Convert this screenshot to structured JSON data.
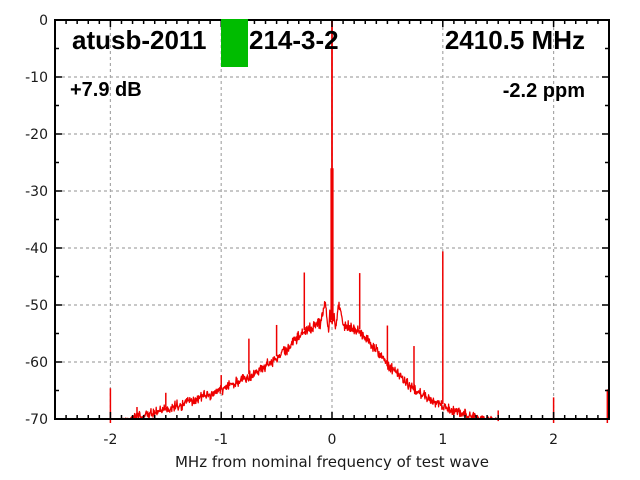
{
  "header": {
    "title_left": "atusb-2011",
    "title_right_part": "214-3-2",
    "frequency": "2410.5 MHz",
    "gain": "+7.9 dB",
    "ppm": "-2.2 ppm"
  },
  "colors": {
    "trace": "#ee0000",
    "marker_green": "#00bc00",
    "grid": "#a8a8a8",
    "axis": "#000000",
    "tick_text": "#1a1a1a"
  },
  "noise_seed": 1337,
  "chart_data": {
    "type": "line",
    "xlabel": "MHz from nominal frequency of test wave",
    "ylabel": "",
    "xlim": [
      -2.5,
      2.5
    ],
    "ylim": [
      -70,
      0
    ],
    "grid": true,
    "x_ticks": [
      -2,
      -1,
      0,
      1,
      2
    ],
    "x_tick_labels": [
      "-2",
      "-1",
      "0",
      "1",
      "2"
    ],
    "x_minor_step": 0.1,
    "y_ticks": [
      0,
      -10,
      -20,
      -30,
      -40,
      -50,
      -60,
      -70
    ],
    "y_tick_labels": [
      "0",
      "-10",
      "-20",
      "-30",
      "-40",
      "-50",
      "-60",
      "-70"
    ],
    "y_minor_step": 5,
    "noise_amplitude_dB": 1.1,
    "noise_envelope_points": [
      [
        -2.5,
        -71.0
      ],
      [
        -1.95,
        -71.0
      ],
      [
        -1.85,
        -70.2
      ],
      [
        -1.75,
        -69.6
      ],
      [
        -1.6,
        -68.9
      ],
      [
        -1.5,
        -68.3
      ],
      [
        -1.35,
        -67.4
      ],
      [
        -1.2,
        -66.4
      ],
      [
        -1.05,
        -65.3
      ],
      [
        -0.9,
        -63.9
      ],
      [
        -0.8,
        -63.0
      ],
      [
        -0.7,
        -61.9
      ],
      [
        -0.6,
        -60.7
      ],
      [
        -0.5,
        -59.3
      ],
      [
        -0.42,
        -58.0
      ],
      [
        -0.34,
        -56.4
      ],
      [
        -0.27,
        -55.0
      ],
      [
        -0.2,
        -54.0
      ],
      [
        -0.14,
        -53.4
      ],
      [
        -0.1,
        -53.1
      ],
      [
        -0.075,
        -50.3
      ],
      [
        -0.055,
        -49.8
      ],
      [
        -0.04,
        -53.0
      ],
      [
        -0.03,
        -54.5
      ],
      [
        -0.02,
        -51.8
      ],
      [
        -0.01,
        -52.3
      ],
      [
        0,
        -52.6
      ],
      [
        0.01,
        -52.3
      ],
      [
        0.02,
        -51.8
      ],
      [
        0.03,
        -54.5
      ],
      [
        0.04,
        -53.0
      ],
      [
        0.055,
        -49.9
      ],
      [
        0.075,
        -50.5
      ],
      [
        0.1,
        -53.3
      ],
      [
        0.15,
        -53.7
      ],
      [
        0.2,
        -54.2
      ],
      [
        0.25,
        -54.6
      ],
      [
        0.3,
        -55.6
      ],
      [
        0.36,
        -57.0
      ],
      [
        0.43,
        -58.6
      ],
      [
        0.5,
        -60.5
      ],
      [
        0.6,
        -62.2
      ],
      [
        0.7,
        -64.0
      ],
      [
        0.8,
        -65.5
      ],
      [
        0.9,
        -66.7
      ],
      [
        1.0,
        -67.7
      ],
      [
        1.1,
        -68.5
      ],
      [
        1.2,
        -69.2
      ],
      [
        1.3,
        -69.8
      ],
      [
        1.45,
        -70.5
      ],
      [
        1.6,
        -71.0
      ],
      [
        2.5,
        -71.0
      ]
    ],
    "spurs": [
      {
        "x": -2.0,
        "dB": -64.6
      },
      {
        "x": -1.76,
        "dB": -67.9
      },
      {
        "x": -1.5,
        "dB": -65.4
      },
      {
        "x": -1.0,
        "dB": -62.3
      },
      {
        "x": -0.75,
        "dB": -55.9
      },
      {
        "x": -0.5,
        "dB": -53.5
      },
      {
        "x": -0.25,
        "dB": -44.3
      },
      {
        "x": 0.25,
        "dB": -44.4
      },
      {
        "x": 0.5,
        "dB": -53.6
      },
      {
        "x": 0.74,
        "dB": -57.2
      },
      {
        "x": 1.0,
        "dB": -40.6
      },
      {
        "x": 1.2,
        "dB": -68.2
      },
      {
        "x": 1.5,
        "dB": -68.5
      },
      {
        "x": 2.0,
        "dB": -66.2
      },
      {
        "x": 2.485,
        "dB": -64.8
      }
    ],
    "carrier": {
      "x": 0,
      "peak_dB": 0,
      "thick_below_dB": -26
    }
  }
}
